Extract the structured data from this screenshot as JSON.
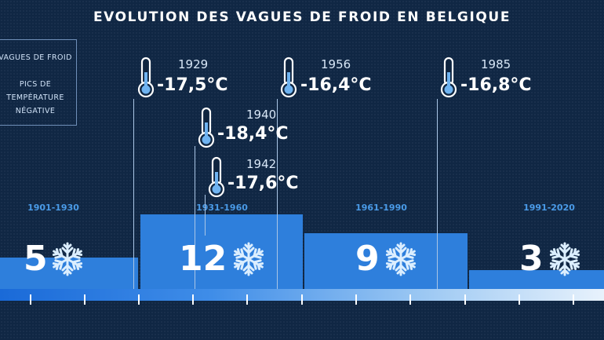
{
  "title": "EVOLUTION DES VAGUES DE FROID EN BELGIQUE",
  "legend": {
    "waves": "VAGUES DE FROID",
    "peaks_line1": "PICS DE",
    "peaks_line2": "TEMPÉRATURE",
    "peaks_line3": "NÉGATIVE"
  },
  "colors": {
    "bar": "#2e7fdc",
    "background": "#102744",
    "label": "#4a9be8"
  },
  "icons": {
    "cold_wave": "snowflake-icon",
    "peak": "thermometer-icon"
  },
  "chart_data": {
    "type": "bar",
    "title": "EVOLUTION DES VAGUES DE FROID EN BELGIQUE",
    "categories": [
      "1901-1930",
      "1931-1960",
      "1961-1990",
      "1991-2020"
    ],
    "values": [
      5,
      12,
      9,
      3
    ],
    "ylim": [
      0,
      12
    ],
    "annotations": [
      {
        "year": "1929",
        "temp": "-17,5°C"
      },
      {
        "year": "1940",
        "temp": "-18,4°C"
      },
      {
        "year": "1942",
        "temp": "-17,6°C"
      },
      {
        "year": "1956",
        "temp": "-16,4°C"
      },
      {
        "year": "1985",
        "temp": "-16,8°C"
      }
    ]
  }
}
